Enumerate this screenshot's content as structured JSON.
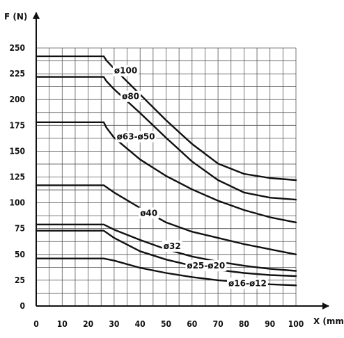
{
  "chart_data": {
    "type": "line",
    "xlabel": "X (mm)",
    "ylabel": "F (N)",
    "xlim": [
      0,
      100
    ],
    "ylim": [
      0,
      250
    ],
    "x_ticks": [
      0,
      10,
      20,
      30,
      40,
      50,
      60,
      70,
      80,
      90,
      100
    ],
    "y_ticks": [
      0,
      25,
      50,
      75,
      100,
      125,
      150,
      175,
      200,
      225,
      250
    ],
    "x_tick_labels": [
      "0",
      "10",
      "20",
      "30",
      "40",
      "50",
      "60",
      "70",
      "80",
      "90",
      "100"
    ],
    "y_tick_labels": [
      "0",
      "25",
      "50",
      "75",
      "100",
      "125",
      "150",
      "175",
      "200",
      "225",
      "250"
    ],
    "grid": true,
    "series": [
      {
        "name": "ø100",
        "x": [
          0,
          26,
          27,
          30,
          40,
          50,
          60,
          70,
          80,
          90,
          100
        ],
        "y": [
          242,
          242,
          238,
          230,
          205,
          180,
          157,
          138,
          128,
          124,
          122
        ]
      },
      {
        "name": "ø80",
        "x": [
          0,
          26,
          27,
          30,
          40,
          50,
          60,
          70,
          80,
          90,
          100
        ],
        "y": [
          222,
          222,
          218,
          210,
          187,
          163,
          140,
          122,
          110,
          105,
          103
        ]
      },
      {
        "name": "ø63-ø50",
        "x": [
          0,
          26,
          27,
          30,
          40,
          50,
          60,
          70,
          80,
          90,
          100
        ],
        "y": [
          178,
          178,
          173,
          163,
          142,
          126,
          113,
          102,
          93,
          86,
          81
        ]
      },
      {
        "name": "ø40",
        "x": [
          0,
          26,
          30,
          40,
          50,
          60,
          70,
          80,
          90,
          100
        ],
        "y": [
          117,
          117,
          110,
          95,
          81,
          72,
          66,
          60,
          55,
          50
        ]
      },
      {
        "name": "ø32",
        "x": [
          0,
          26,
          30,
          40,
          50,
          60,
          70,
          80,
          90,
          100
        ],
        "y": [
          79,
          79,
          74,
          64,
          55,
          48,
          43,
          39,
          36,
          34
        ]
      },
      {
        "name": "ø25-ø20",
        "x": [
          0,
          26,
          30,
          40,
          50,
          60,
          70,
          80,
          90,
          100
        ],
        "y": [
          73,
          73,
          66,
          53,
          45,
          39,
          35,
          32,
          30,
          29
        ]
      },
      {
        "name": "ø16-ø12",
        "x": [
          0,
          26,
          30,
          40,
          50,
          60,
          70,
          80,
          90,
          100
        ],
        "y": [
          46,
          46,
          44,
          37,
          32,
          28,
          25,
          23,
          21,
          20
        ]
      }
    ],
    "annotations": [
      {
        "text": "ø100",
        "x": 30,
        "y": 228
      },
      {
        "text": "ø80",
        "x": 33,
        "y": 203
      },
      {
        "text": "ø63-ø50",
        "x": 31,
        "y": 164
      },
      {
        "text": "ø40",
        "x": 40,
        "y": 90
      },
      {
        "text": "ø32",
        "x": 49,
        "y": 58
      },
      {
        "text": "ø25-ø20",
        "x": 58,
        "y": 39
      },
      {
        "text": "ø16-ø12",
        "x": 74,
        "y": 22
      }
    ]
  }
}
